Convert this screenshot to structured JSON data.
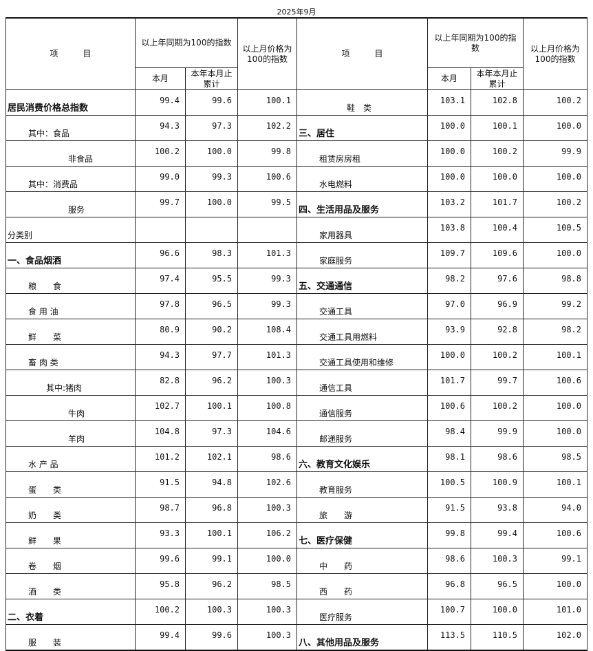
{
  "caption": "2025年9月",
  "header": {
    "item": "项　　　目",
    "yoy_group_left": "以上年同期为100的指数",
    "yoy_group_right": "以上年同期为100的指数",
    "mom": "以上月价格为100的指数",
    "this_month": "本月",
    "ytd": "本年本月止累计"
  },
  "rows": [
    {
      "l": {
        "label": "居民消费价格总指数",
        "style": "b",
        "v": [
          "99.4",
          "99.6",
          "100.1"
        ]
      },
      "r": {
        "label": "鞋　类",
        "style": "i3",
        "v": [
          "103.1",
          "102.8",
          "100.2"
        ]
      }
    },
    {
      "l": {
        "label": "其中：食品",
        "style": "i1",
        "v": [
          "94.3",
          "97.3",
          "102.2"
        ]
      },
      "r": {
        "label": "三、居住",
        "style": "b",
        "v": [
          "100.0",
          "100.1",
          "100.0"
        ]
      }
    },
    {
      "l": {
        "label": "非食品",
        "style": "i4",
        "v": [
          "100.2",
          "100.0",
          "99.8"
        ]
      },
      "r": {
        "label": "租赁房房租",
        "style": "i1",
        "v": [
          "100.0",
          "100.2",
          "99.9"
        ]
      }
    },
    {
      "l": {
        "label": "其中：消费品",
        "style": "i1",
        "v": [
          "99.0",
          "99.3",
          "100.6"
        ]
      },
      "r": {
        "label": "水电燃料",
        "style": "i1",
        "v": [
          "100.0",
          "100.0",
          "100.0"
        ]
      }
    },
    {
      "l": {
        "label": "服务",
        "style": "i4",
        "v": [
          "99.7",
          "100.0",
          "99.5"
        ]
      },
      "r": {
        "label": "四、生活用品及服务",
        "style": "b",
        "v": [
          "103.2",
          "101.7",
          "100.2"
        ]
      }
    },
    {
      "l": {
        "label": "分类别",
        "style": "",
        "v": [
          "",
          "",
          ""
        ]
      },
      "r": {
        "label": "家用器具",
        "style": "i1",
        "v": [
          "103.8",
          "100.4",
          "100.5"
        ]
      }
    },
    {
      "l": {
        "label": "一、食品烟酒",
        "style": "b",
        "v": [
          "96.6",
          "98.3",
          "101.3"
        ]
      },
      "r": {
        "label": "家庭服务",
        "style": "i1",
        "v": [
          "109.7",
          "109.6",
          "100.0"
        ]
      }
    },
    {
      "l": {
        "label": "粮　　食",
        "style": "i1",
        "v": [
          "97.4",
          "95.5",
          "99.3"
        ]
      },
      "r": {
        "label": "五、交通通信",
        "style": "b",
        "v": [
          "98.2",
          "97.6",
          "98.8"
        ]
      }
    },
    {
      "l": {
        "label": "食 用 油",
        "style": "i1",
        "v": [
          "97.8",
          "96.5",
          "99.3"
        ]
      },
      "r": {
        "label": "交通工具",
        "style": "i1",
        "v": [
          "97.0",
          "96.9",
          "99.2"
        ]
      }
    },
    {
      "l": {
        "label": "鲜　　菜",
        "style": "i1",
        "v": [
          "80.9",
          "90.2",
          "108.4"
        ]
      },
      "r": {
        "label": "交通工具用燃料",
        "style": "i1",
        "v": [
          "93.9",
          "92.8",
          "98.2"
        ]
      }
    },
    {
      "l": {
        "label": "畜 肉 类",
        "style": "i1",
        "v": [
          "94.3",
          "97.7",
          "101.3"
        ]
      },
      "r": {
        "label": "交通工具使用和维修",
        "style": "i1",
        "v": [
          "100.0",
          "100.2",
          "100.1"
        ]
      }
    },
    {
      "l": {
        "label": "其中:猪肉",
        "style": "i2",
        "v": [
          "82.8",
          "96.2",
          "100.3"
        ]
      },
      "r": {
        "label": "通信工具",
        "style": "i1",
        "v": [
          "101.7",
          "99.7",
          "100.6"
        ]
      }
    },
    {
      "l": {
        "label": "牛肉",
        "style": "i4",
        "v": [
          "102.7",
          "100.1",
          "100.8"
        ]
      },
      "r": {
        "label": "通信服务",
        "style": "i1",
        "v": [
          "100.6",
          "100.2",
          "100.0"
        ]
      }
    },
    {
      "l": {
        "label": "羊肉",
        "style": "i4",
        "v": [
          "104.8",
          "97.3",
          "104.6"
        ]
      },
      "r": {
        "label": "邮递服务",
        "style": "i1",
        "v": [
          "98.4",
          "99.9",
          "100.0"
        ]
      }
    },
    {
      "l": {
        "label": "水 产 品",
        "style": "i1",
        "v": [
          "101.2",
          "102.1",
          "98.6"
        ]
      },
      "r": {
        "label": "六、教育文化娱乐",
        "style": "b",
        "v": [
          "98.1",
          "98.6",
          "98.5"
        ]
      }
    },
    {
      "l": {
        "label": "蛋　　类",
        "style": "i1",
        "v": [
          "91.5",
          "94.8",
          "102.6"
        ]
      },
      "r": {
        "label": "教育服务",
        "style": "i1",
        "v": [
          "100.5",
          "100.9",
          "100.1"
        ]
      }
    },
    {
      "l": {
        "label": "奶　　类",
        "style": "i1",
        "v": [
          "98.7",
          "96.8",
          "100.3"
        ]
      },
      "r": {
        "label": "旅　　游",
        "style": "i1",
        "v": [
          "91.5",
          "93.8",
          "94.0"
        ]
      }
    },
    {
      "l": {
        "label": "鲜　　果",
        "style": "i1",
        "v": [
          "93.3",
          "100.1",
          "106.2"
        ]
      },
      "r": {
        "label": "七、医疗保健",
        "style": "b",
        "v": [
          "99.8",
          "99.4",
          "100.6"
        ]
      }
    },
    {
      "l": {
        "label": "卷　　烟",
        "style": "i1",
        "v": [
          "99.6",
          "99.1",
          "100.0"
        ]
      },
      "r": {
        "label": "中　　药",
        "style": "i1",
        "v": [
          "98.6",
          "100.3",
          "99.1"
        ]
      }
    },
    {
      "l": {
        "label": "酒　　类",
        "style": "i1",
        "v": [
          "95.8",
          "96.2",
          "98.5"
        ]
      },
      "r": {
        "label": "西　　药",
        "style": "i1",
        "v": [
          "96.8",
          "96.5",
          "100.0"
        ]
      }
    },
    {
      "l": {
        "label": "二、衣着",
        "style": "b",
        "v": [
          "100.2",
          "100.3",
          "100.3"
        ]
      },
      "r": {
        "label": "医疗服务",
        "style": "i1",
        "v": [
          "100.7",
          "100.0",
          "101.0"
        ]
      }
    },
    {
      "l": {
        "label": "服　　装",
        "style": "i1",
        "v": [
          "99.4",
          "99.6",
          "100.3"
        ]
      },
      "r": {
        "label": "八、其他用品及服务",
        "style": "b",
        "v": [
          "113.5",
          "110.5",
          "102.0"
        ]
      }
    }
  ]
}
